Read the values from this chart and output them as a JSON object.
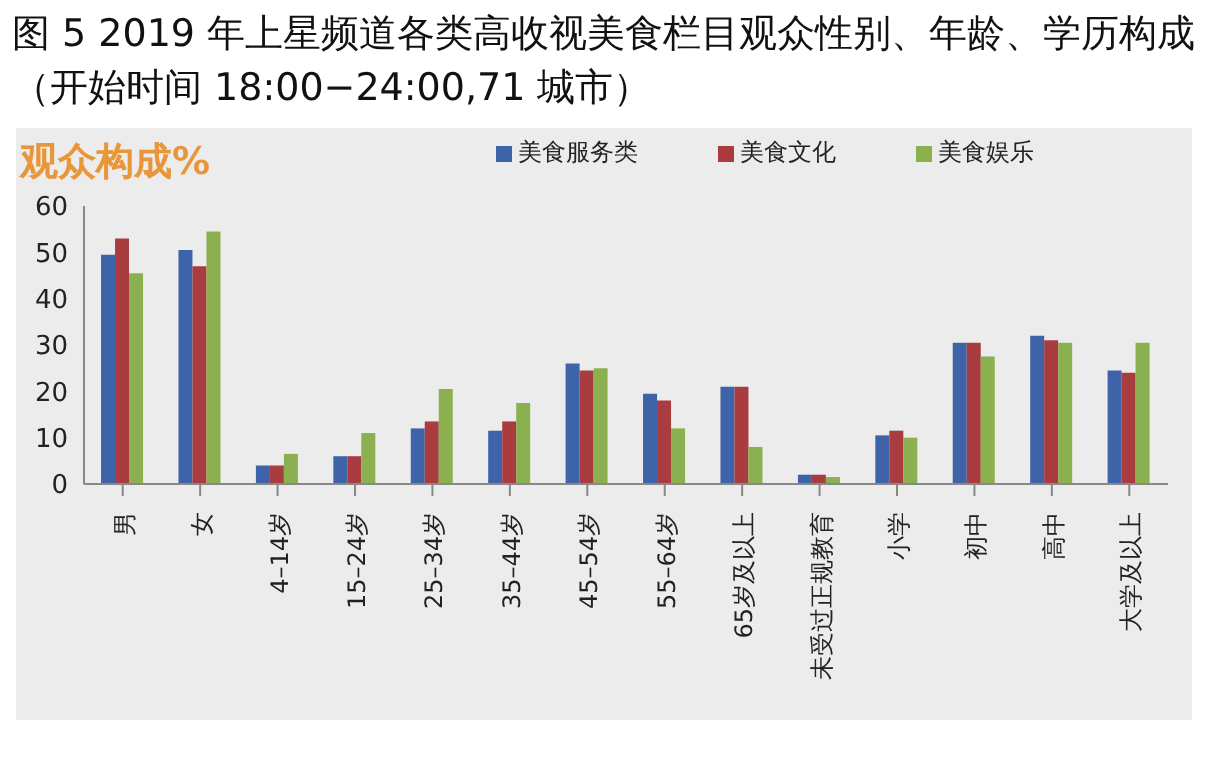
{
  "chart_data": {
    "type": "bar",
    "title": "图 5 2019 年上星频道各类高收视美食栏目观众性别、年龄、学历构成（开始时间 18:00−24:00,71 城市）",
    "ylabel": "观众构成%",
    "categories": [
      "男",
      "女",
      "4–14岁",
      "15–24岁",
      "25–34岁",
      "35–44岁",
      "45–54岁",
      "55–64岁",
      "65岁及以上",
      "未受过正规教育",
      "小学",
      "初中",
      "高中",
      "大学及以上"
    ],
    "series": [
      {
        "name": "美食服务类",
        "color": "#3f63a8",
        "values": [
          49.5,
          50.5,
          4,
          6,
          12,
          11.5,
          26,
          19.5,
          21,
          2,
          10.5,
          30.5,
          32,
          24.5
        ]
      },
      {
        "name": "美食文化",
        "color": "#a83c3f",
        "values": [
          53,
          47,
          4,
          6,
          13.5,
          13.5,
          24.5,
          18,
          21,
          2,
          11.5,
          30.5,
          31,
          24
        ]
      },
      {
        "name": "美食娱乐",
        "color": "#8bb04f",
        "values": [
          45.5,
          54.5,
          6.5,
          11,
          20.5,
          17.5,
          25,
          12,
          8,
          1.5,
          10,
          27.5,
          30.5,
          30.5
        ]
      }
    ],
    "ylim": [
      0,
      60
    ],
    "yticks": [
      0,
      10,
      20,
      30,
      40,
      50,
      60
    ],
    "legend": "top"
  }
}
